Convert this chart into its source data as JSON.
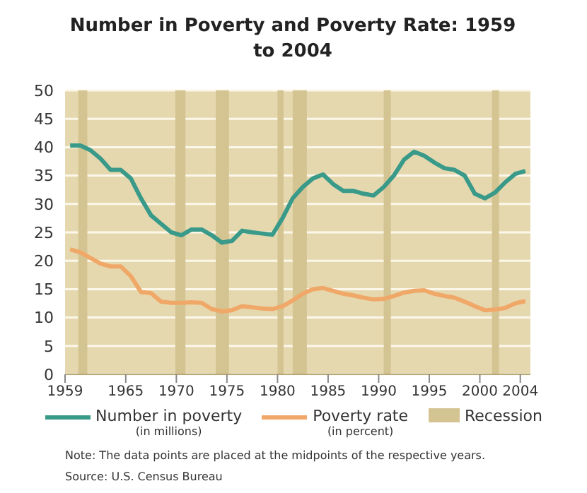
{
  "chart_data": {
    "type": "line",
    "title": "Number in Poverty and Poverty Rate: 1959 to 2004",
    "x": [
      1959.5,
      1960.5,
      1961.5,
      1962.5,
      1963.5,
      1964.5,
      1965.5,
      1966.5,
      1967.5,
      1968.5,
      1969.5,
      1970.5,
      1971.5,
      1972.5,
      1973.5,
      1974.5,
      1975.5,
      1976.5,
      1977.5,
      1978.5,
      1979.5,
      1980.5,
      1981.5,
      1982.5,
      1983.5,
      1984.5,
      1985.5,
      1986.5,
      1987.5,
      1988.5,
      1989.5,
      1990.5,
      1991.5,
      1992.5,
      1993.5,
      1994.5,
      1995.5,
      1996.5,
      1997.5,
      1998.5,
      1999.5,
      2000.5,
      2001.5,
      2002.5,
      2003.5,
      2004.5
    ],
    "series": [
      {
        "name": "Number in poverty (in millions)",
        "color": "#3a9a8a",
        "values": [
          40.3,
          40.3,
          39.5,
          38,
          36,
          36,
          34.5,
          31,
          28,
          26.5,
          25,
          24.5,
          25.5,
          25.5,
          24.5,
          23.2,
          23.5,
          25.3,
          25,
          24.8,
          24.6,
          27.5,
          31,
          33,
          34.5,
          35.2,
          33.5,
          32.3,
          32.3,
          31.8,
          31.5,
          33,
          35,
          37.8,
          39.2,
          38.5,
          37.3,
          36.3,
          36,
          35,
          31.8,
          31,
          32,
          33.8,
          35.3,
          35.8
        ]
      },
      {
        "name": "Poverty rate (in percent)",
        "color": "#f0a868",
        "values": [
          22,
          21.5,
          20.5,
          19.5,
          19,
          19,
          17.3,
          14.5,
          14.3,
          12.8,
          12.6,
          12.6,
          12.7,
          12.6,
          11.5,
          11.1,
          11.3,
          12,
          11.8,
          11.6,
          11.5,
          12,
          13,
          14.2,
          15,
          15.2,
          14.7,
          14.2,
          13.9,
          13.5,
          13.2,
          13.3,
          13.8,
          14.4,
          14.7,
          14.8,
          14.2,
          13.8,
          13.5,
          12.8,
          12,
          11.3,
          11.4,
          11.7,
          12.5,
          12.9
        ]
      }
    ],
    "bands": [
      {
        "axis": "x",
        "from": 1960.3,
        "to": 1961.2,
        "label": "Recession",
        "color": "#d4c492"
      },
      {
        "axis": "x",
        "from": 1969.9,
        "to": 1970.9,
        "color": "#d4c492"
      },
      {
        "axis": "x",
        "from": 1973.9,
        "to": 1975.2,
        "color": "#d4c492"
      },
      {
        "axis": "x",
        "from": 1980,
        "to": 1980.6,
        "color": "#d4c492"
      },
      {
        "axis": "x",
        "from": 1981.5,
        "to": 1982.9,
        "color": "#d4c492"
      },
      {
        "axis": "x",
        "from": 1990.5,
        "to": 1991.2,
        "color": "#d4c492"
      },
      {
        "axis": "x",
        "from": 2001.2,
        "to": 2001.9,
        "color": "#d4c492"
      }
    ],
    "xlim": [
      1959,
      2005
    ],
    "xticks": [
      1959,
      1965,
      1970,
      1975,
      1980,
      1985,
      1990,
      1995,
      2000,
      2004
    ],
    "ylim": [
      0,
      50
    ],
    "yticks": [
      0,
      5,
      10,
      15,
      20,
      25,
      30,
      35,
      40,
      45,
      50
    ],
    "grid": "y",
    "legend": "bottom",
    "marker": "none",
    "line_style": "solid",
    "annotations": [
      "Note: The data points are placed at the midpoints of the respective years.",
      "Source: U.S. Census Bureau"
    ]
  }
}
